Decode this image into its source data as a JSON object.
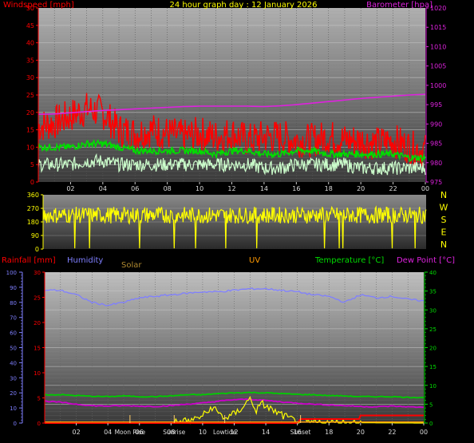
{
  "colors": {
    "wind_gust": "#ff0000",
    "wind_avg": "#00dd00",
    "wind_min": "#ccffcc",
    "barometer": "#dd22dd",
    "direction": "#ffff00",
    "humidity": "#7f7fff",
    "temperature": "#00cc00",
    "dewpoint": "#cc00cc",
    "rain": "#ff0000",
    "solar": "#ffff00",
    "uv": "#ff9900"
  },
  "chart_data": [
    {
      "type": "line",
      "panel": "wind_baro",
      "title": "24 hour graph day : 12 January 2026",
      "ylabel_left": "Windspeed [mph]",
      "ylabel_right": "Barometer [hpa]",
      "ylim_left": [
        0,
        50
      ],
      "ylim_right": [
        975,
        1020
      ],
      "yticks_left": [
        "0",
        "5",
        "10",
        "15",
        "20",
        "25",
        "30",
        "35",
        "40",
        "45",
        "50"
      ],
      "yticks_right": [
        "975",
        "980",
        "985",
        "990",
        "995",
        "1000",
        "1005",
        "1010",
        "1015",
        "1020"
      ],
      "x_ticks": [
        "02",
        "04",
        "06",
        "08",
        "10",
        "12",
        "14",
        "16",
        "18",
        "20",
        "22",
        "00"
      ],
      "x_hours": [
        0,
        1,
        2,
        3,
        4,
        5,
        6,
        7,
        8,
        9,
        10,
        11,
        12,
        13,
        14,
        15,
        16,
        17,
        18,
        19,
        20,
        21,
        22,
        23,
        24
      ],
      "series": [
        {
          "key": "gust",
          "values": [
            16,
            17,
            19,
            21,
            20,
            15,
            14,
            15,
            14,
            13,
            14,
            13,
            14,
            12,
            13,
            13,
            12,
            12,
            13,
            12,
            12,
            11,
            12,
            10,
            9
          ],
          "noise": 5
        },
        {
          "key": "avg",
          "values": [
            10,
            10,
            10,
            11,
            11,
            10,
            9,
            9,
            9,
            9,
            9,
            8,
            9,
            9,
            8,
            8,
            9,
            9,
            8,
            8,
            8,
            8,
            8,
            7,
            7
          ],
          "noise": 1
        },
        {
          "key": "min",
          "values": [
            5,
            5,
            5,
            6,
            6,
            5,
            5,
            5,
            5,
            5,
            5,
            5,
            5,
            5,
            4,
            4,
            5,
            5,
            5,
            5,
            4,
            4,
            4,
            4,
            4
          ],
          "noise": 2
        },
        {
          "key": "baro",
          "axis": "right",
          "values": [
            992.5,
            992.6,
            992.9,
            993.2,
            993.5,
            993.7,
            993.9,
            994.1,
            994.3,
            994.5,
            994.6,
            994.6,
            994.6,
            994.6,
            994.5,
            994.7,
            995.0,
            995.4,
            995.8,
            996.2,
            996.6,
            996.9,
            997.2,
            997.5,
            997.7
          ]
        }
      ]
    },
    {
      "type": "line",
      "panel": "wind_direction",
      "ylim": [
        0,
        360
      ],
      "yticks": [
        "0",
        "90",
        "180",
        "270",
        "360"
      ],
      "compass": [
        "N",
        "W",
        "S",
        "E",
        "N"
      ],
      "series": [
        {
          "key": "direction",
          "center": 225,
          "noise": 55,
          "dropouts": 12
        }
      ]
    },
    {
      "type": "line",
      "panel": "weather",
      "labels": {
        "rainfall": "Rainfall [mm]",
        "humidity": "Humidity",
        "solar": "Solar",
        "uv": "UV",
        "temperature": "Temperature [°C]",
        "dewpoint": "Dew Point [°C]"
      },
      "ylim_humidity": [
        0,
        100
      ],
      "yticks_humidity": [
        "0",
        "10",
        "20",
        "30",
        "40",
        "50",
        "60",
        "70",
        "80",
        "90",
        "100"
      ],
      "ylim_rain": [
        0,
        30
      ],
      "yticks_rain": [
        "0",
        "5",
        "10",
        "15",
        "20",
        "25",
        "30"
      ],
      "ylim_temp": [
        0,
        40
      ],
      "yticks_temp": [
        "0",
        "5",
        "10",
        "15",
        "20",
        "25",
        "30",
        "35",
        "40"
      ],
      "x_ticks": [
        "02",
        "04",
        "06",
        "08",
        "10",
        "12",
        "14",
        "16",
        "18",
        "20",
        "22",
        "00"
      ],
      "x_hours": [
        0,
        1,
        2,
        3,
        4,
        5,
        6,
        7,
        8,
        9,
        10,
        11,
        12,
        13,
        14,
        15,
        16,
        17,
        18,
        19,
        20,
        21,
        22,
        23,
        24
      ],
      "events": [
        "Moon Rise",
        "Sunrise",
        "Lowtide",
        "Sunset"
      ],
      "event_hours": [
        5.4,
        8.2,
        11.4,
        16.2
      ],
      "series": [
        {
          "key": "humidity",
          "axis": "humidity",
          "values": [
            88,
            88,
            85,
            80,
            78,
            80,
            83,
            84,
            85,
            86,
            87,
            87,
            88,
            89,
            89,
            88,
            87,
            85,
            84,
            80,
            85,
            83,
            84,
            82,
            81
          ]
        },
        {
          "key": "temperature",
          "axis": "temp",
          "values": [
            7.5,
            7.5,
            7.3,
            7.1,
            7.0,
            7.2,
            7.0,
            7.0,
            7.2,
            7.5,
            7.5,
            7.8,
            8.0,
            8.1,
            8.0,
            7.8,
            7.6,
            7.5,
            7.3,
            7.2,
            7.0,
            7.0,
            7.0,
            6.8,
            6.8
          ]
        },
        {
          "key": "dewpoint",
          "axis": "temp",
          "values": [
            5.8,
            5.5,
            5.0,
            4.6,
            4.5,
            4.6,
            4.5,
            4.4,
            4.6,
            5.0,
            5.3,
            5.8,
            6.2,
            6.3,
            6.0,
            5.6,
            5.3,
            5.0,
            4.8,
            4.6,
            4.4,
            4.3,
            4.5,
            4.3,
            4.2
          ]
        },
        {
          "key": "rain",
          "axis": "rain",
          "x": [
            0,
            16,
            16.2,
            19.9,
            20,
            24
          ],
          "values": [
            0,
            0,
            0.8,
            0.8,
            1.5,
            1.5
          ]
        },
        {
          "key": "solar",
          "axis": "rain",
          "x": [
            0,
            7.9,
            8.3,
            9,
            9.4,
            9.8,
            10.2,
            10.6,
            11,
            11.4,
            11.8,
            12.2,
            12.6,
            13,
            13.4,
            13.8,
            14.2,
            14.6,
            15,
            15.4,
            15.8,
            16.2,
            24
          ],
          "values": [
            0,
            0,
            0.2,
            0.4,
            0.6,
            1.2,
            1.8,
            3.2,
            2.0,
            1.0,
            1.4,
            2.2,
            3.5,
            4.8,
            2.6,
            3.8,
            3.0,
            2.2,
            1.6,
            1.0,
            0.5,
            0.1,
            0
          ]
        },
        {
          "key": "uv",
          "axis": "rain",
          "x": [
            0,
            24
          ],
          "values": [
            0.2,
            0.2
          ]
        }
      ]
    }
  ]
}
